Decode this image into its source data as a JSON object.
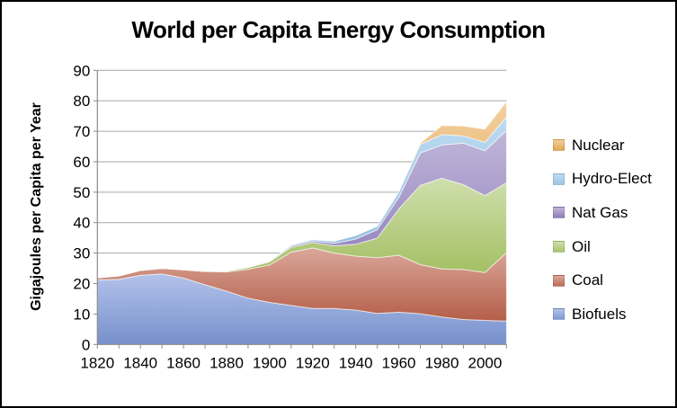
{
  "window": {
    "background": "#FFFFFF",
    "border_color": "#000000"
  },
  "chart_data": {
    "type": "area",
    "stacked": true,
    "title": "World per Capita Energy Consumption",
    "xlabel": "",
    "ylabel": "Gigajoules per Capita per Year",
    "ylim": [
      0,
      90
    ],
    "grid": true,
    "legend_position": "right",
    "grid_color": "#A6A6A6",
    "axis_color": "#8A8A8A",
    "tick_label_color": "#000000",
    "y_ticks": [
      0,
      10,
      20,
      30,
      40,
      50,
      60,
      70,
      80,
      90
    ],
    "x_label_years": [
      1820,
      1840,
      1860,
      1880,
      1900,
      1920,
      1940,
      1960,
      1980,
      2000
    ],
    "years": [
      1820,
      1830,
      1840,
      1850,
      1860,
      1870,
      1880,
      1890,
      1900,
      1910,
      1920,
      1930,
      1940,
      1950,
      1960,
      1970,
      1980,
      1990,
      2000,
      2010
    ],
    "series": [
      {
        "name": "Biofuels",
        "values": [
          21.2,
          21.4,
          22.7,
          23.2,
          21.8,
          19.6,
          17.5,
          15.2,
          13.8,
          12.8,
          11.8,
          11.8,
          11.3,
          10.2,
          10.6,
          10.1,
          9.0,
          8.2,
          7.9,
          7.7
        ],
        "fill_top": "#B3C2EA",
        "fill_bottom": "#7690CC",
        "swatch": "#7E99D2"
      },
      {
        "name": "Coal",
        "values": [
          0.7,
          1.1,
          1.6,
          1.8,
          2.7,
          4.4,
          6.3,
          9.5,
          12.3,
          17.5,
          19.9,
          18.2,
          17.7,
          18.3,
          18.7,
          16.1,
          15.8,
          16.4,
          15.7,
          22.5
        ],
        "fill_top": "#DAA79A",
        "fill_bottom": "#B45E48",
        "swatch": "#BF6B57"
      },
      {
        "name": "Oil",
        "values": [
          0,
          0,
          0,
          0,
          0,
          0,
          0.3,
          0.6,
          1.0,
          1.6,
          1.8,
          2.4,
          3.9,
          6.4,
          15.2,
          26.1,
          29.8,
          27.9,
          25.3,
          22.9
        ],
        "fill_top": "#CFDFAD",
        "fill_bottom": "#A2BE60",
        "swatch": "#ABC46D"
      },
      {
        "name": "Nat Gas",
        "values": [
          0,
          0,
          0,
          0,
          0,
          0,
          0,
          0,
          0.2,
          0.4,
          0.5,
          0.8,
          1.7,
          2.8,
          3.8,
          10.6,
          10.9,
          13.6,
          14.7,
          17.2
        ],
        "fill_top": "#C0B6D8",
        "fill_bottom": "#8E7EBB",
        "swatch": "#8F7DB8"
      },
      {
        "name": "Hydro-Elect",
        "values": [
          0,
          0,
          0,
          0,
          0,
          0,
          0,
          0,
          0.1,
          0.3,
          0.4,
          0.7,
          1.2,
          1.1,
          1.8,
          2.8,
          3.4,
          2.4,
          2.8,
          4.4
        ],
        "fill_top": "#BDDBF2",
        "fill_bottom": "#8BB9DE",
        "swatch": "#9CC5E5"
      },
      {
        "name": "Nuclear",
        "values": [
          0,
          0,
          0,
          0,
          0,
          0,
          0,
          0,
          0,
          0,
          0,
          0,
          0,
          0,
          0,
          0.4,
          3.0,
          3.2,
          4.3,
          5.1
        ],
        "fill_top": "#F3D09F",
        "fill_bottom": "#DC9D40",
        "swatch": "#E2A74E"
      }
    ],
    "legend_order": [
      "Nuclear",
      "Hydro-Elect",
      "Nat Gas",
      "Oil",
      "Coal",
      "Biofuels"
    ]
  }
}
